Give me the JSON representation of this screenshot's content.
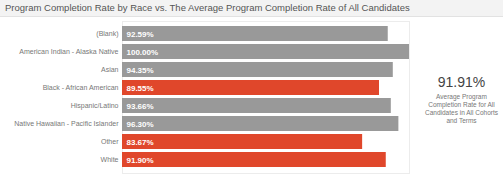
{
  "chart_data": {
    "type": "bar",
    "orientation": "horizontal",
    "title": "Program Completion Rate by Race vs. The Average Program Completion Rate of All Candidates",
    "categories": [
      "(Blank)",
      "American Indian - Alaska Native",
      "Asian",
      "Black - African American",
      "Hispanic/Latino",
      "Native Hawaiian - Pacific Islander",
      "Other",
      "White"
    ],
    "values": [
      92.59,
      100.0,
      94.35,
      89.55,
      93.66,
      96.3,
      83.67,
      91.9
    ],
    "value_labels": [
      "92.59%",
      "100.00%",
      "94.35%",
      "89.55%",
      "93.66%",
      "96.30%",
      "83.67%",
      "91.90%"
    ],
    "colors": [
      "#999999",
      "#999999",
      "#999999",
      "#e0472b",
      "#999999",
      "#999999",
      "#e0472b",
      "#e0472b"
    ],
    "data_labels": true,
    "tick_labels": "y",
    "xlim": [
      0,
      100
    ],
    "average": {
      "value": 91.91,
      "label": "91.91%",
      "text": "Average Program Completion Rate for All Candidates in All Cohorts and Terms"
    }
  }
}
